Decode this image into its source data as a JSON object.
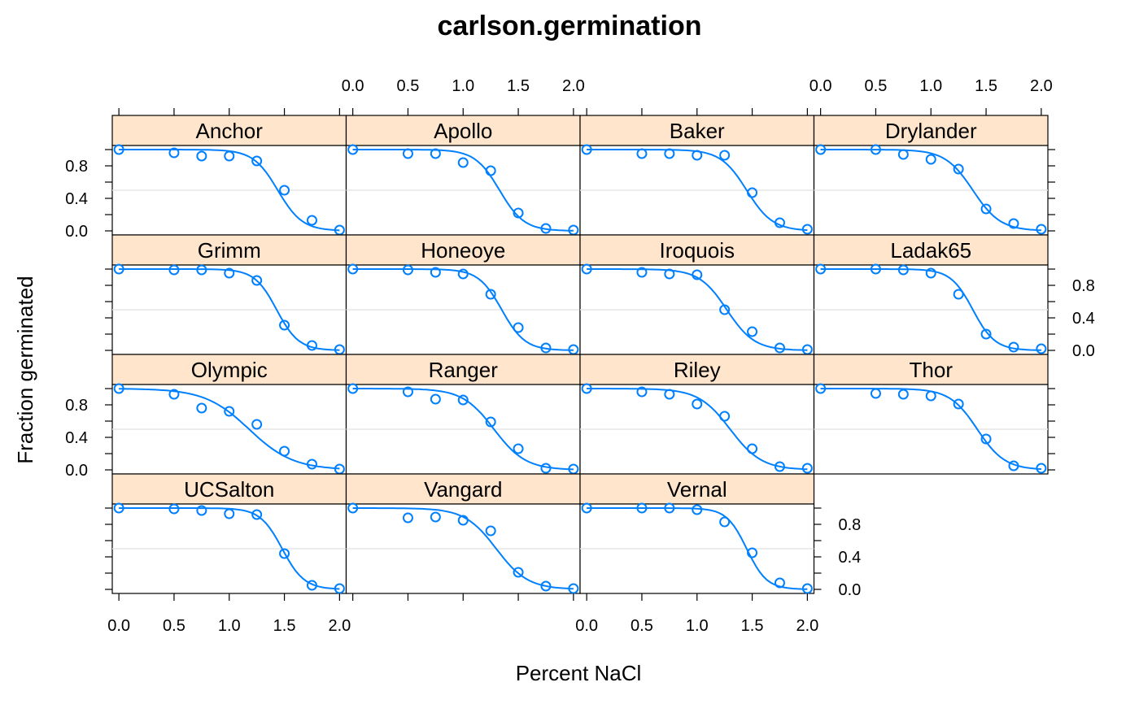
{
  "chart_data": {
    "type": "scatter",
    "title": "carlson.germination",
    "xlabel": "Percent NaCl",
    "ylabel": "Fraction germinated",
    "x_ticks": [
      "0.0",
      "0.5",
      "1.0",
      "1.5",
      "2.0"
    ],
    "y_ticks": [
      "0.0",
      "0.4",
      "0.8"
    ],
    "xlim": [
      -0.06,
      2.06
    ],
    "ylim": [
      -0.05,
      1.05
    ],
    "layout": {
      "columns": 4,
      "rows": 4
    },
    "x": [
      0,
      0.5,
      0.75,
      1.0,
      1.25,
      1.5,
      1.75,
      2.0
    ],
    "grid": "horizontal reference line at 0.5",
    "legend": "none",
    "colors": {
      "points": "#0080ff",
      "strip": "#ffe5cc",
      "grid": "#e6e6e6"
    },
    "panels": [
      {
        "name": "Anchor",
        "values": [
          1.0,
          0.96,
          0.92,
          0.92,
          0.86,
          0.5,
          0.13,
          0.01
        ],
        "fit": [
          1.44,
          9
        ]
      },
      {
        "name": "Apollo",
        "values": [
          1.0,
          0.95,
          0.95,
          0.84,
          0.74,
          0.22,
          0.03,
          0.01
        ],
        "fit": [
          1.33,
          9
        ]
      },
      {
        "name": "Baker",
        "values": [
          1.0,
          0.95,
          0.95,
          0.93,
          0.93,
          0.47,
          0.1,
          0.02
        ],
        "fit": [
          1.45,
          8.5
        ]
      },
      {
        "name": "Drylander",
        "values": [
          1.0,
          1.0,
          0.94,
          0.88,
          0.76,
          0.27,
          0.09,
          0.02
        ],
        "fit": [
          1.38,
          8
        ]
      },
      {
        "name": "Grimm",
        "values": [
          1.0,
          0.99,
          0.99,
          0.95,
          0.86,
          0.31,
          0.06,
          0.01
        ],
        "fit": [
          1.43,
          10
        ]
      },
      {
        "name": "Honeoye",
        "values": [
          1.0,
          0.99,
          0.96,
          0.94,
          0.69,
          0.28,
          0.03,
          0.01
        ],
        "fit": [
          1.35,
          9.5
        ]
      },
      {
        "name": "Iroquois",
        "values": [
          1.0,
          0.96,
          0.94,
          0.93,
          0.5,
          0.23,
          0.03,
          0.01
        ],
        "fit": [
          1.27,
          8
        ]
      },
      {
        "name": "Ladak65",
        "values": [
          1.0,
          1.0,
          0.99,
          0.95,
          0.69,
          0.2,
          0.04,
          0.02
        ],
        "fit": [
          1.38,
          10
        ]
      },
      {
        "name": "Olympic",
        "values": [
          1.0,
          0.93,
          0.76,
          0.72,
          0.56,
          0.23,
          0.07,
          0.01
        ],
        "fit": [
          1.18,
          5
        ]
      },
      {
        "name": "Ranger",
        "values": [
          1.0,
          0.96,
          0.87,
          0.86,
          0.59,
          0.26,
          0.02,
          0.01
        ],
        "fit": [
          1.28,
          7
        ]
      },
      {
        "name": "Riley",
        "values": [
          1.0,
          0.96,
          0.93,
          0.81,
          0.66,
          0.26,
          0.04,
          0.02
        ],
        "fit": [
          1.3,
          7
        ]
      },
      {
        "name": "Thor",
        "values": [
          1.0,
          0.94,
          0.93,
          0.91,
          0.81,
          0.38,
          0.05,
          0.02
        ],
        "fit": [
          1.42,
          8
        ]
      },
      {
        "name": "UCSalton",
        "values": [
          1.0,
          0.99,
          0.97,
          0.93,
          0.92,
          0.44,
          0.05,
          0.01
        ],
        "fit": [
          1.48,
          10
        ]
      },
      {
        "name": "Vangard",
        "values": [
          1.0,
          0.88,
          0.89,
          0.85,
          0.72,
          0.21,
          0.04,
          0.01
        ],
        "fit": [
          1.3,
          7
        ]
      },
      {
        "name": "Vernal",
        "values": [
          1.0,
          1.0,
          1.0,
          0.98,
          0.83,
          0.45,
          0.08,
          0.01
        ],
        "fit": [
          1.45,
          11
        ]
      }
    ]
  }
}
